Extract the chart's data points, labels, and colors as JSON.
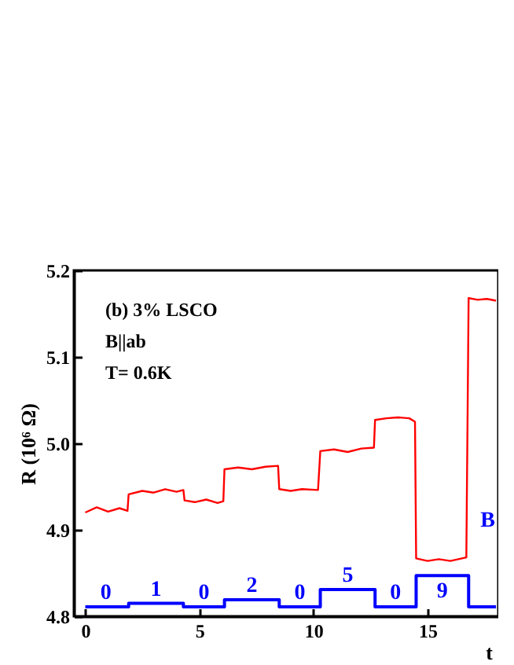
{
  "chart_data": {
    "type": "line",
    "xlabel": "t",
    "ylabel": "R (10⁶ Ω)",
    "annotations": [
      "(b)  3% LSCO",
      "B||ab",
      "T= 0.6K",
      {
        "text": "0",
        "x": 0.9,
        "y": 4.811
      },
      {
        "text": "1",
        "x": 3.1,
        "y": 4.815
      },
      {
        "text": "0",
        "x": 5.2,
        "y": 4.811
      },
      {
        "text": "2",
        "x": 7.3,
        "y": 4.819
      },
      {
        "text": "0",
        "x": 9.4,
        "y": 4.811
      },
      {
        "text": "5",
        "x": 11.5,
        "y": 4.831
      },
      {
        "text": "0",
        "x": 13.6,
        "y": 4.811
      },
      {
        "text": "9",
        "x": 15.65,
        "y": 4.847
      },
      "B"
    ],
    "series": [
      {
        "color": "#ff0000",
        "x": [
          0,
          0.5,
          1,
          1.5,
          1.85,
          1.9,
          2.5,
          3,
          3.5,
          4,
          4.3,
          4.35,
          4.8,
          5.3,
          5.8,
          6.05,
          6.1,
          6.7,
          7.3,
          7.9,
          8.45,
          8.5,
          9,
          9.5,
          10.2,
          10.3,
          10.9,
          11.5,
          12.1,
          12.65,
          12.7,
          13.2,
          13.7,
          14.2,
          14.45,
          14.5,
          15,
          15.5,
          16,
          16.7,
          16.8,
          17.2,
          17.6,
          18
        ],
        "values": [
          4.92,
          4.926,
          4.921,
          4.925,
          4.922,
          4.941,
          4.945,
          4.943,
          4.947,
          4.944,
          4.946,
          4.934,
          4.932,
          4.935,
          4.931,
          4.933,
          4.97,
          4.972,
          4.97,
          4.973,
          4.974,
          4.947,
          4.945,
          4.947,
          4.946,
          4.991,
          4.993,
          4.99,
          4.994,
          4.995,
          5.027,
          5.029,
          5.03,
          5.029,
          5.025,
          4.867,
          4.864,
          4.866,
          4.864,
          4.868,
          5.168,
          5.166,
          5.167,
          5.165
        ]
      },
      {
        "type": "step",
        "color": "#0000ff",
        "x": [
          0,
          1.9,
          4.3,
          6.1,
          8.5,
          10.3,
          12.7,
          14.5,
          16.8,
          18
        ],
        "values": [
          4.811,
          4.815,
          4.811,
          4.819,
          4.811,
          4.831,
          4.811,
          4.847,
          4.811,
          4.811
        ]
      }
    ],
    "xlim": [
      -0.5,
      18.1
    ],
    "ylim": [
      4.8,
      5.2
    ],
    "xticks": [
      0,
      5,
      10,
      15
    ],
    "yticks": [
      4.8,
      4.9,
      {
        "value": 5,
        "label": "5.0"
      },
      5.1,
      5.2
    ],
    "grid": false
  }
}
